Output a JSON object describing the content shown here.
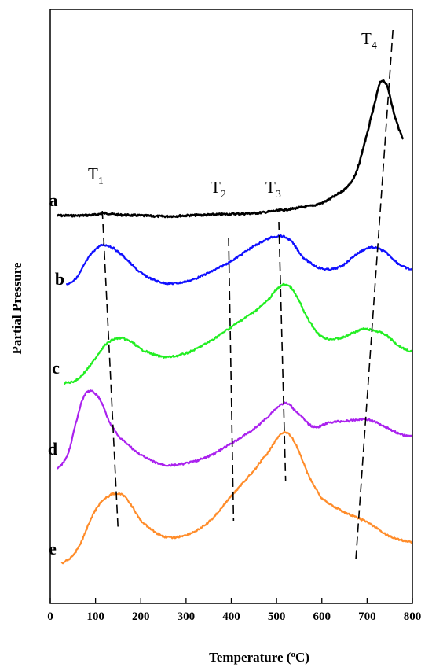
{
  "chart_data": {
    "type": "line",
    "xlabel": "Temperature (°C)",
    "ylabel": "Partial Pressure",
    "xlim": [
      0,
      800
    ],
    "x_ticks": [
      "0",
      "100",
      "200",
      "300",
      "400",
      "500",
      "600",
      "700",
      "800"
    ],
    "y_ticks": "none",
    "grid": false,
    "legend": "none",
    "series": [
      {
        "name": "a",
        "color": "#000000",
        "x": [
          15,
          60,
          100,
          120,
          150,
          200,
          250,
          300,
          350,
          400,
          450,
          500,
          550,
          600,
          650,
          675,
          700,
          715,
          730,
          745,
          760,
          780
        ],
        "y": [
          0.02,
          0.02,
          0.03,
          0.05,
          0.03,
          0.02,
          0.01,
          0.02,
          0.03,
          0.04,
          0.05,
          0.08,
          0.12,
          0.18,
          0.35,
          0.55,
          1.05,
          1.4,
          1.72,
          1.65,
          1.3,
          1.0
        ]
      },
      {
        "name": "b",
        "color": "#1010ff",
        "x": [
          35,
          60,
          80,
          100,
          120,
          150,
          200,
          250,
          300,
          350,
          400,
          450,
          500,
          530,
          560,
          600,
          640,
          680,
          710,
          740,
          770,
          800
        ],
        "y": [
          0.15,
          0.28,
          0.55,
          0.75,
          0.82,
          0.7,
          0.35,
          0.18,
          0.2,
          0.35,
          0.55,
          0.8,
          0.97,
          0.9,
          0.6,
          0.42,
          0.45,
          0.68,
          0.78,
          0.7,
          0.5,
          0.4
        ]
      },
      {
        "name": "c",
        "color": "#22ee22",
        "x": [
          30,
          60,
          90,
          120,
          150,
          180,
          200,
          250,
          300,
          350,
          400,
          450,
          480,
          500,
          520,
          540,
          570,
          600,
          640,
          680,
          700,
          740,
          770,
          800
        ],
        "y": [
          0.0,
          0.05,
          0.25,
          0.5,
          0.6,
          0.55,
          0.45,
          0.35,
          0.4,
          0.55,
          0.75,
          0.95,
          1.1,
          1.25,
          1.32,
          1.2,
          0.85,
          0.62,
          0.6,
          0.7,
          0.72,
          0.65,
          0.5,
          0.42
        ]
      },
      {
        "name": "d",
        "color": "#aa22ee",
        "x": [
          15,
          40,
          60,
          75,
          90,
          110,
          130,
          150,
          200,
          250,
          300,
          350,
          400,
          450,
          480,
          500,
          520,
          540,
          580,
          620,
          660,
          700,
          740,
          770,
          800
        ],
        "y": [
          0.02,
          0.25,
          0.75,
          1.05,
          1.12,
          1.0,
          0.7,
          0.48,
          0.22,
          0.08,
          0.1,
          0.2,
          0.38,
          0.58,
          0.75,
          0.88,
          0.95,
          0.85,
          0.62,
          0.68,
          0.7,
          0.72,
          0.62,
          0.52,
          0.48
        ]
      },
      {
        "name": "e",
        "color": "#ff8c2a",
        "x": [
          25,
          60,
          100,
          130,
          150,
          170,
          200,
          250,
          300,
          350,
          400,
          450,
          480,
          500,
          520,
          540,
          570,
          600,
          650,
          700,
          750,
          800
        ],
        "y": [
          0.0,
          0.2,
          0.75,
          0.95,
          0.98,
          0.9,
          0.6,
          0.38,
          0.4,
          0.58,
          0.95,
          1.3,
          1.55,
          1.75,
          1.85,
          1.7,
          1.25,
          0.92,
          0.72,
          0.58,
          0.38,
          0.3
        ]
      }
    ],
    "annotations": [
      {
        "text": "a",
        "series": "a"
      },
      {
        "text": "b",
        "series": "b"
      },
      {
        "text": "c",
        "series": "c"
      },
      {
        "text": "d",
        "series": "d"
      },
      {
        "text": "e",
        "series": "e"
      }
    ],
    "guide_lines": [
      {
        "name": "T1",
        "label_main": "T",
        "label_sub": "1",
        "from": [
          115,
          "a"
        ],
        "to": [
          150,
          "e"
        ]
      },
      {
        "name": "T2",
        "label_main": "T",
        "label_sub": "2",
        "from": [
          395,
          "b-top"
        ],
        "to": [
          405,
          "e"
        ]
      },
      {
        "name": "T3",
        "label_main": "T",
        "label_sub": "3",
        "from": [
          505,
          "b-top"
        ],
        "to": [
          520,
          "d-bottom"
        ]
      },
      {
        "name": "T4",
        "label_main": "T",
        "label_sub": "4",
        "from": [
          755,
          "top"
        ],
        "to": [
          675,
          "bottom"
        ]
      }
    ]
  }
}
